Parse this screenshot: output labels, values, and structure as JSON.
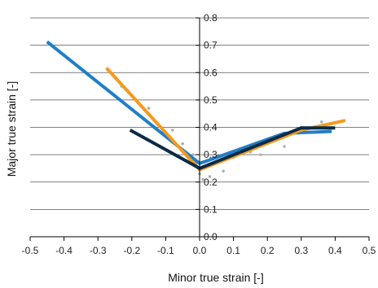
{
  "chart_data": {
    "type": "line",
    "title": "",
    "xlabel": "Minor true strain [-]",
    "ylabel": "Major true strain [-]",
    "xlim": [
      -0.5,
      0.5
    ],
    "ylim": [
      0.0,
      0.8
    ],
    "xticks": [
      -0.5,
      -0.4,
      -0.3,
      -0.2,
      -0.1,
      0.0,
      0.1,
      0.2,
      0.3,
      0.4,
      0.5
    ],
    "xtick_labels": [
      "-0.5",
      "-0.4",
      "-0.3",
      "-0.2",
      "-0.1",
      "0.0",
      "0.1",
      "0.2",
      "0.3",
      "0.4",
      "0.5"
    ],
    "yticks": [
      0.0,
      0.1,
      0.2,
      0.3,
      0.4,
      0.5,
      0.6,
      0.7,
      0.8
    ],
    "ytick_labels": [
      "0.0",
      "0.1",
      "0.2",
      "0.3",
      "0.4",
      "0.5",
      "0.6",
      "0.7",
      "0.8"
    ],
    "grid": "horizontal",
    "legend": "none",
    "series": [
      {
        "color": "#1f7fc6",
        "points": [
          [
            -0.45,
            0.713
          ],
          [
            0.0,
            0.268
          ],
          [
            0.25,
            0.378
          ],
          [
            0.39,
            0.385
          ]
        ]
      },
      {
        "color": "#f59a1e",
        "points": [
          [
            -0.275,
            0.617
          ],
          [
            0.0,
            0.245
          ],
          [
            0.3,
            0.39
          ],
          [
            0.43,
            0.425
          ]
        ]
      },
      {
        "color": "#0d2a45",
        "points": [
          [
            -0.205,
            0.39
          ],
          [
            0.0,
            0.25
          ],
          [
            0.3,
            0.398
          ],
          [
            0.4,
            0.398
          ]
        ]
      }
    ],
    "scatter": {
      "color": "#b0b0b0",
      "points": [
        [
          -0.23,
          0.55
        ],
        [
          -0.15,
          0.47
        ],
        [
          -0.08,
          0.39
        ],
        [
          -0.05,
          0.34
        ],
        [
          -0.02,
          0.3
        ],
        [
          -0.01,
          0.27
        ],
        [
          0.0,
          0.23
        ],
        [
          0.01,
          0.21
        ],
        [
          0.03,
          0.22
        ],
        [
          0.07,
          0.24
        ],
        [
          0.1,
          0.29
        ],
        [
          0.15,
          0.31
        ],
        [
          0.18,
          0.3
        ],
        [
          0.22,
          0.35
        ],
        [
          0.25,
          0.33
        ],
        [
          0.3,
          0.4
        ],
        [
          0.36,
          0.42
        ]
      ]
    }
  }
}
